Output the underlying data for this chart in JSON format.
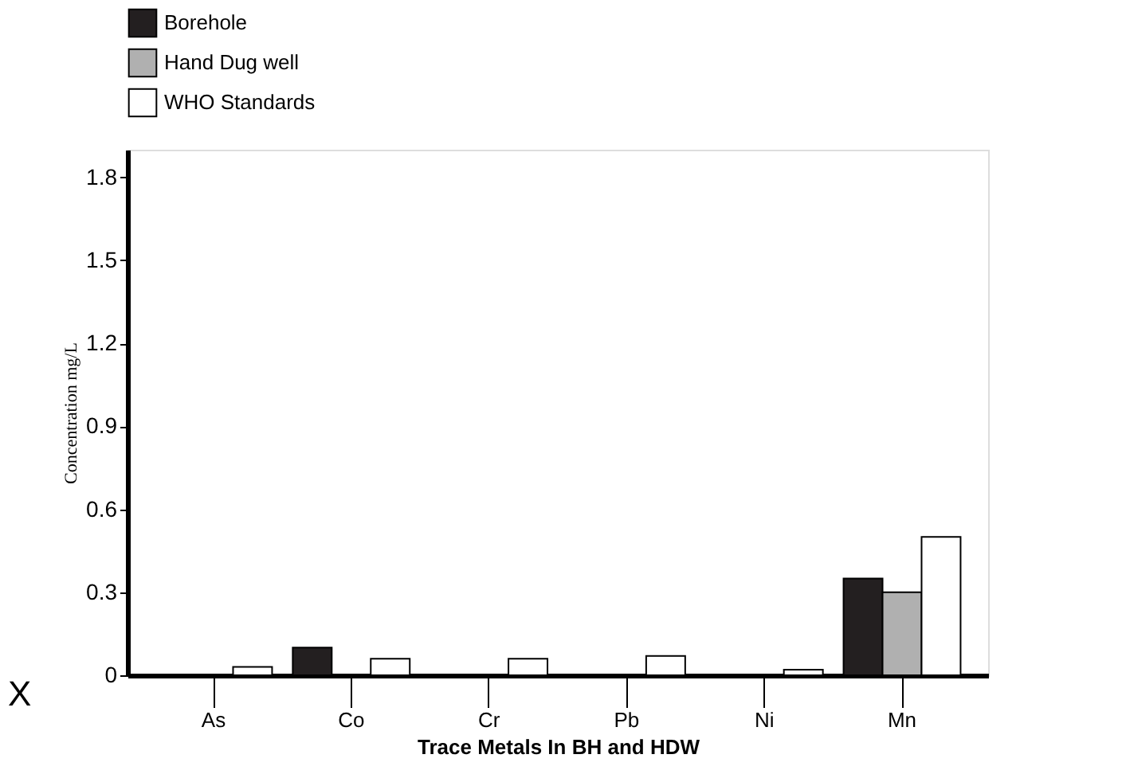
{
  "chart_data": {
    "type": "bar",
    "xlabel": "Trace Metals In BH and HDW",
    "ylabel": "Concentration  mg/L",
    "categories": [
      "As",
      "Co",
      "Cr",
      "Pb",
      "Ni",
      "Mn"
    ],
    "series": [
      {
        "name": "Borehole",
        "color": "#231f20",
        "values": [
          null,
          0.1,
          null,
          null,
          null,
          0.35
        ]
      },
      {
        "name": "Hand Dug well",
        "color": "#b0b0b0",
        "values": [
          null,
          null,
          null,
          null,
          null,
          0.3
        ]
      },
      {
        "name": "WHO  Standards",
        "color": "#ffffff",
        "values": [
          0.03,
          0.06,
          0.06,
          0.07,
          0.02,
          0.5
        ]
      }
    ],
    "ylim": [
      0,
      1.9
    ],
    "yticks": [
      0,
      0.3,
      0.6,
      0.9,
      1.2,
      1.5,
      1.8
    ],
    "grid": false,
    "legend": "top",
    "annotations": [
      "X"
    ]
  }
}
